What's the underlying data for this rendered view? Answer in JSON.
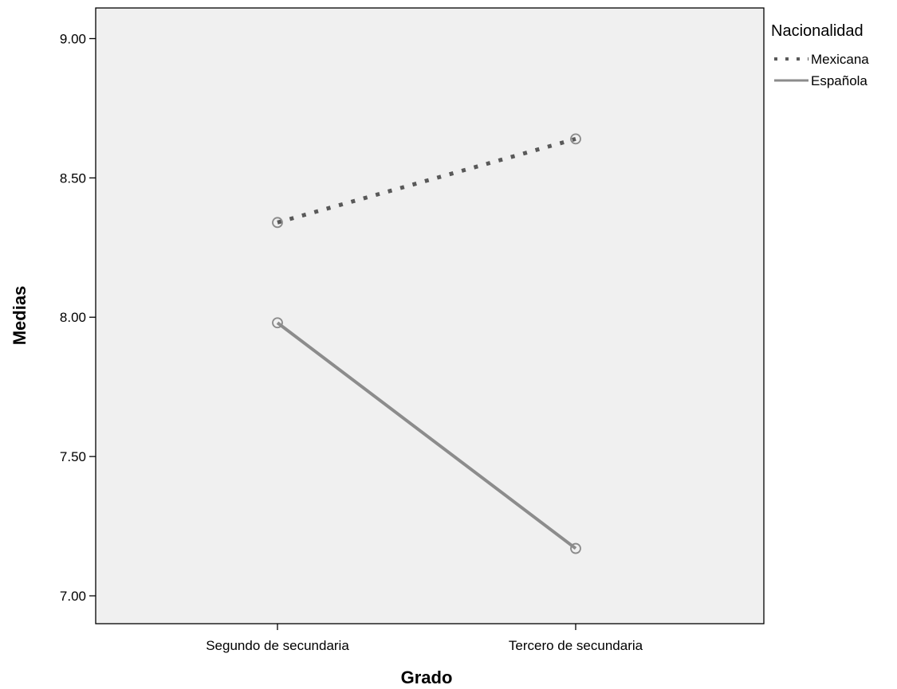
{
  "chart_data": {
    "type": "line",
    "categories": [
      "Segundo de secundaria",
      "Tercero de secundaria"
    ],
    "series": [
      {
        "name": "Mexicana",
        "values": [
          8.34,
          8.64
        ],
        "color": "#595959",
        "style": "dotted"
      },
      {
        "name": "Española",
        "values": [
          7.98,
          7.17
        ],
        "color": "#8c8c8c",
        "style": "solid"
      }
    ],
    "xlabel": "Grado",
    "ylabel": "Medias",
    "ylim": [
      6.9,
      9.11
    ],
    "yticks": [
      7.0,
      7.5,
      8.0,
      8.5,
      9.0
    ],
    "ytick_labels": [
      "7.00",
      "7.50",
      "8.00",
      "8.50",
      "9.00"
    ],
    "legend_title": "Nacionalidad",
    "legend_position": "top-right outside",
    "grid": false,
    "background_color": "#f0f0f0"
  }
}
